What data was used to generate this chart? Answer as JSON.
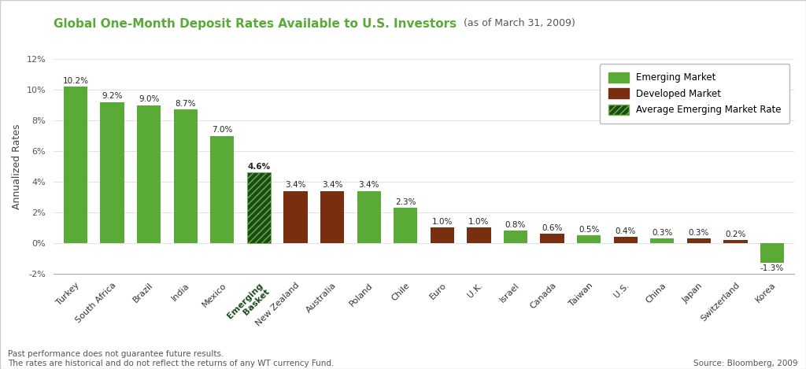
{
  "title_bold": "Global One-Month Deposit Rates Available to U.S. Investors",
  "title_normal": " (as of March 31, 2009)",
  "ylabel": "Annualized Rates",
  "categories": [
    "Turkey",
    "South Africa",
    "Brazil",
    "India",
    "Mexico",
    "Emerging\nBasket",
    "New Zealand",
    "Australia",
    "Poland",
    "Chile",
    "Euro",
    "U.K.",
    "Israel",
    "Canada",
    "Taiwan",
    "U.S.",
    "China",
    "Japan",
    "Switzerland",
    "Korea"
  ],
  "values": [
    10.2,
    9.2,
    9.0,
    8.7,
    7.0,
    4.6,
    3.4,
    3.4,
    3.4,
    2.3,
    1.0,
    1.0,
    0.8,
    0.6,
    0.5,
    0.4,
    0.3,
    0.3,
    0.2,
    -1.3
  ],
  "bar_types": [
    "emerging",
    "emerging",
    "emerging",
    "emerging",
    "emerging",
    "average",
    "developed",
    "developed",
    "emerging",
    "emerging",
    "developed",
    "developed",
    "emerging",
    "developed",
    "emerging",
    "developed",
    "emerging",
    "developed",
    "developed",
    "emerging"
  ],
  "emerging_color": "#5aaa38",
  "developed_color": "#7a2e10",
  "average_fill_color": "#1a4a1a",
  "average_hatch_color": "#6db33f",
  "label_fontsize": 7.5,
  "tick_fontsize": 8,
  "ylim": [
    -2,
    12
  ],
  "yticks": [
    -2,
    0,
    2,
    4,
    6,
    8,
    10,
    12
  ],
  "ytick_labels": [
    "-2%",
    "0%",
    "2%",
    "4%",
    "6%",
    "8%",
    "10%",
    "12%"
  ],
  "footer_left": "Past performance does not guarantee future results.\nThe rates are historical and do not reflect the returns of any WT currency Fund.",
  "footer_right": "Source: Bloomberg, 2009",
  "background_color": "#ffffff",
  "legend_entries": [
    "Emerging Market",
    "Developed Market",
    "Average Emerging Market Rate"
  ],
  "title_color": "#5aaa38",
  "subtitle_color": "#555555"
}
